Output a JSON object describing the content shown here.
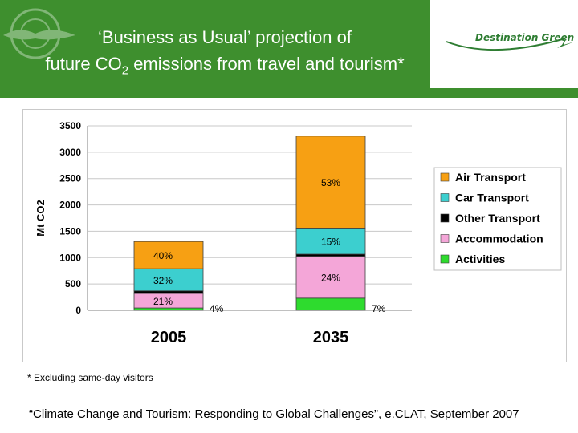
{
  "header": {
    "title_line1": "‘Business as Usual’ projection of",
    "title_line2_pre": "future CO",
    "title_line2_sub": "2",
    "title_line2_post": " emissions from travel and tourism*",
    "brand": "Destination Green",
    "colors": {
      "banner": "#3e8f2e",
      "brand": "#2e7d32"
    }
  },
  "footer": {
    "note": "* Excluding same-day visitors",
    "citation": "“Climate Change and Tourism: Responding to Global Challenges”, e.CLAT, September 2007"
  },
  "chart_data": {
    "type": "bar",
    "stacked": true,
    "categories": [
      "2005",
      "2035"
    ],
    "ylabel": "Mt CO2",
    "ylim": [
      0,
      3500
    ],
    "yticks": [
      0,
      500,
      1000,
      1500,
      2000,
      2500,
      3000,
      3500
    ],
    "grid": true,
    "legend": "right",
    "series": [
      {
        "name": "Activities",
        "color": "#2edb2e",
        "values": [
          45,
          231
        ]
      },
      {
        "name": "Accommodation",
        "color": "#f4a6d8",
        "values": [
          274,
          794
        ]
      },
      {
        "name": "Other Transport",
        "color": "#000000",
        "values": [
          50,
          40
        ]
      },
      {
        "name": "Car Transport",
        "color": "#3ccfcf",
        "values": [
          420,
          496
        ]
      },
      {
        "name": "Air Transport",
        "color": "#f7a013",
        "values": [
          517,
          1744
        ]
      }
    ],
    "legend_order": [
      "Air Transport",
      "Car Transport",
      "Other Transport",
      "Accommodation",
      "Activities"
    ],
    "data_labels": [
      {
        "category": "2005",
        "series": "Air Transport",
        "text": "40%"
      },
      {
        "category": "2005",
        "series": "Car Transport",
        "text": "32%"
      },
      {
        "category": "2005",
        "series": "Accommodation",
        "text": "21%"
      },
      {
        "category": "2005",
        "series": "Activities",
        "text": "4%"
      },
      {
        "category": "2035",
        "series": "Air Transport",
        "text": "53%"
      },
      {
        "category": "2035",
        "series": "Car Transport",
        "text": "15%"
      },
      {
        "category": "2035",
        "series": "Accommodation",
        "text": "24%"
      },
      {
        "category": "2035",
        "series": "Activities",
        "text": "7%"
      }
    ]
  }
}
